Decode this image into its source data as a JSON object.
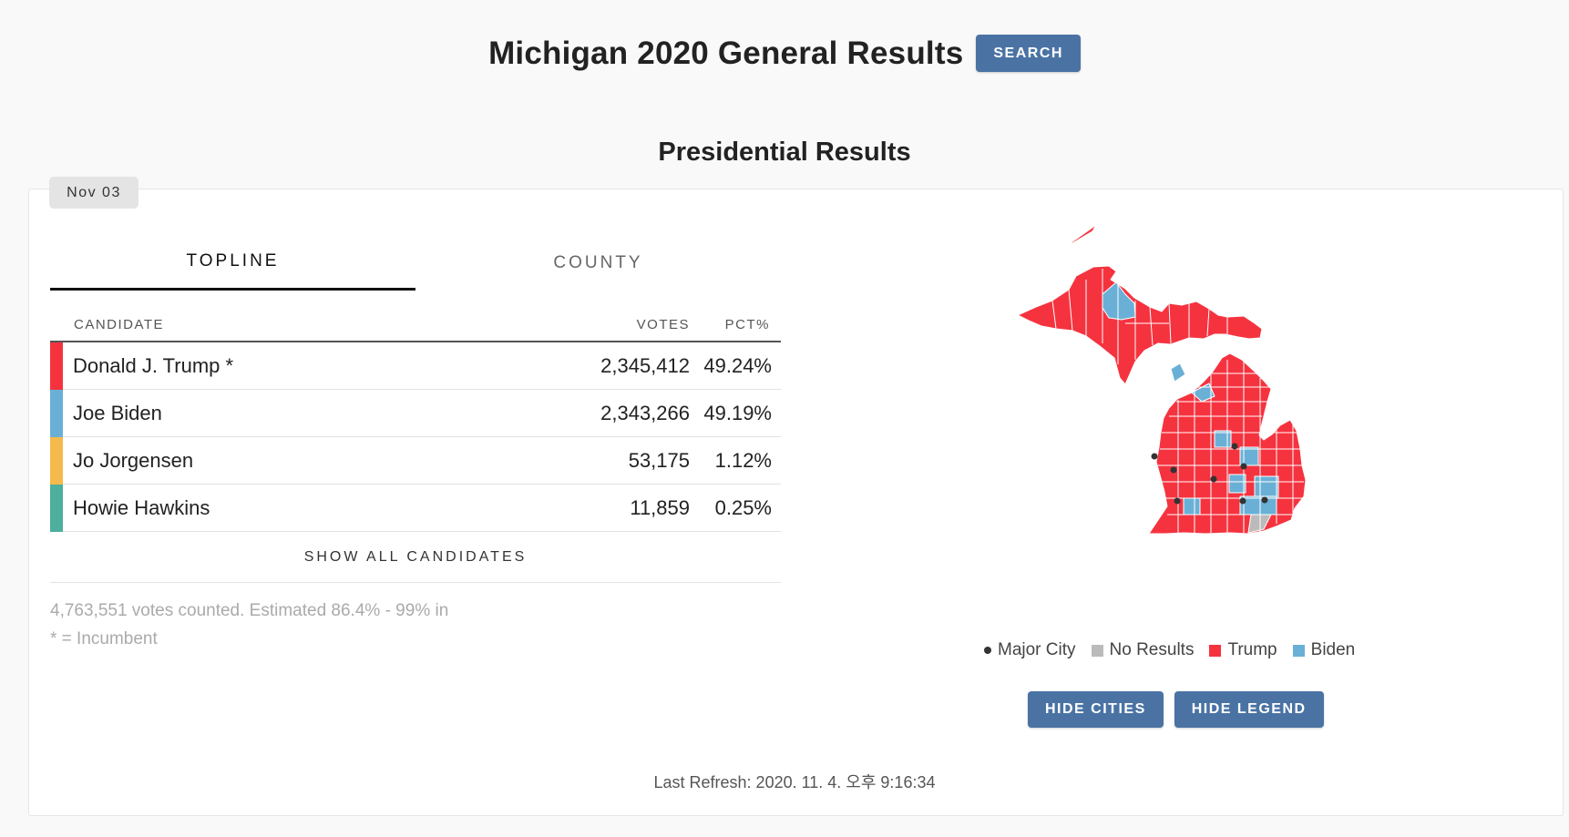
{
  "header": {
    "title": "Michigan 2020 General Results",
    "search_label": "SEARCH"
  },
  "section_title": "Presidential Results",
  "date_tab": "Nov 03",
  "tabs": [
    {
      "label": "TOPLINE",
      "active": true
    },
    {
      "label": "COUNTY",
      "active": false
    }
  ],
  "table": {
    "headers": {
      "candidate": "CANDIDATE",
      "votes": "VOTES",
      "pct": "PCT%"
    },
    "rows": [
      {
        "name": "Donald J. Trump *",
        "votes": "2,345,412",
        "pct": "49.24%",
        "color": "#f5333f"
      },
      {
        "name": "Joe Biden",
        "votes": "2,343,266",
        "pct": "49.19%",
        "color": "#6ab0d6"
      },
      {
        "name": "Jo Jorgensen",
        "votes": "53,175",
        "pct": "1.12%",
        "color": "#f6b94c"
      },
      {
        "name": "Howie Hawkins",
        "votes": "11,859",
        "pct": "0.25%",
        "color": "#4daf9c"
      }
    ],
    "show_all_label": "SHOW ALL CANDIDATES"
  },
  "footnotes": {
    "votes_counted": "4,763,551 votes counted. Estimated 86.4% - 99% in",
    "incumbent_note": "* = Incumbent"
  },
  "legend": {
    "major_city": "Major City",
    "no_results": "No Results",
    "trump": "Trump",
    "biden": "Biden",
    "colors": {
      "major_city": "#333333",
      "no_results": "#bbbbbb",
      "trump": "#f5333f",
      "biden": "#6ab0d6"
    }
  },
  "map_buttons": {
    "hide_cities": "HIDE CITIES",
    "hide_legend": "HIDE LEGEND"
  },
  "last_refresh": "Last Refresh: 2020. 11. 4. 오후 9:16:34"
}
